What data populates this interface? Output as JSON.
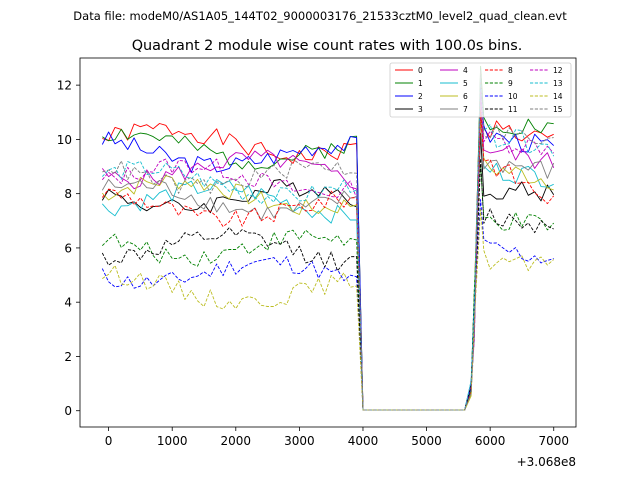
{
  "header": {
    "data_file": "Data file: modeM0/AS1A05_144T02_9000003176_21533cztM0_level2_quad_clean.evt",
    "title": "Quadrant 2 module wise count rates with 100.0s bins."
  },
  "chart_data": {
    "type": "line",
    "title": "Quadrant 2 module wise count rates with 100.0s bins.",
    "xlabel": "",
    "ylabel": "",
    "x_offset_label": "+3.068e8",
    "xlim": [
      -450,
      7350
    ],
    "ylim": [
      -0.6,
      13.0
    ],
    "xticks": [
      0,
      1000,
      2000,
      3000,
      4000,
      5000,
      6000,
      7000
    ],
    "yticks": [
      0,
      2,
      4,
      6,
      8,
      10,
      12
    ],
    "grid": false,
    "legend_position": "top-right",
    "gap": {
      "start": 3900,
      "drop": 4000,
      "end": 5600,
      "rise": 5800,
      "peak": 5850
    },
    "x_start": -100,
    "x_end": 7000,
    "series": [
      {
        "name": "0",
        "color": "#ff0000",
        "dash": "solid",
        "level": 10.0,
        "post": 10.5,
        "slope": -0.6
      },
      {
        "name": "1",
        "color": "#008000",
        "dash": "solid",
        "level": 9.8,
        "post": 10.7,
        "slope": -0.3
      },
      {
        "name": "2",
        "color": "#0000ff",
        "dash": "solid",
        "level": 9.6,
        "post": 10.2,
        "slope": -0.5
      },
      {
        "name": "3",
        "color": "#000000",
        "dash": "solid",
        "level": 8.0,
        "post": 8.2,
        "slope": -0.2
      },
      {
        "name": "4",
        "color": "#bf00bf",
        "dash": "solid",
        "level": 9.0,
        "post": 9.7,
        "slope": -0.6
      },
      {
        "name": "5",
        "color": "#17becf",
        "dash": "solid",
        "level": 7.9,
        "post": 8.9,
        "slope": -0.3
      },
      {
        "name": "6",
        "color": "#bcbd22",
        "dash": "solid",
        "level": 8.1,
        "post": 9.0,
        "slope": -0.5
      },
      {
        "name": "7",
        "color": "#7f7f7f",
        "dash": "solid",
        "level": 7.9,
        "post": 9.2,
        "slope": -0.4
      },
      {
        "name": "8",
        "color": "#ff0000",
        "dash": "dashed",
        "level": 7.6,
        "post": 9.3,
        "slope": -1.6
      },
      {
        "name": "9",
        "color": "#008000",
        "dash": "dashed",
        "level": 6.2,
        "post": 7.0,
        "slope": -0.2
      },
      {
        "name": "10",
        "color": "#0000ff",
        "dash": "dashed",
        "level": 5.2,
        "post": 6.0,
        "slope": -0.4
      },
      {
        "name": "11",
        "color": "#000000",
        "dash": "dashed",
        "level": 6.1,
        "post": 7.2,
        "slope": -0.4
      },
      {
        "name": "12",
        "color": "#bf00bf",
        "dash": "dashed",
        "level": 8.7,
        "post": 10.0,
        "slope": -0.3
      },
      {
        "name": "13",
        "color": "#17becf",
        "dash": "dashed",
        "level": 8.5,
        "post": 10.2,
        "slope": -0.5
      },
      {
        "name": "14",
        "color": "#bcbd22",
        "dash": "dashed",
        "level": 4.6,
        "post": 5.6,
        "slope": -0.4
      },
      {
        "name": "15",
        "color": "#7f7f7f",
        "dash": "dashed",
        "level": 8.8,
        "post": 10.4,
        "slope": -0.6
      }
    ]
  }
}
